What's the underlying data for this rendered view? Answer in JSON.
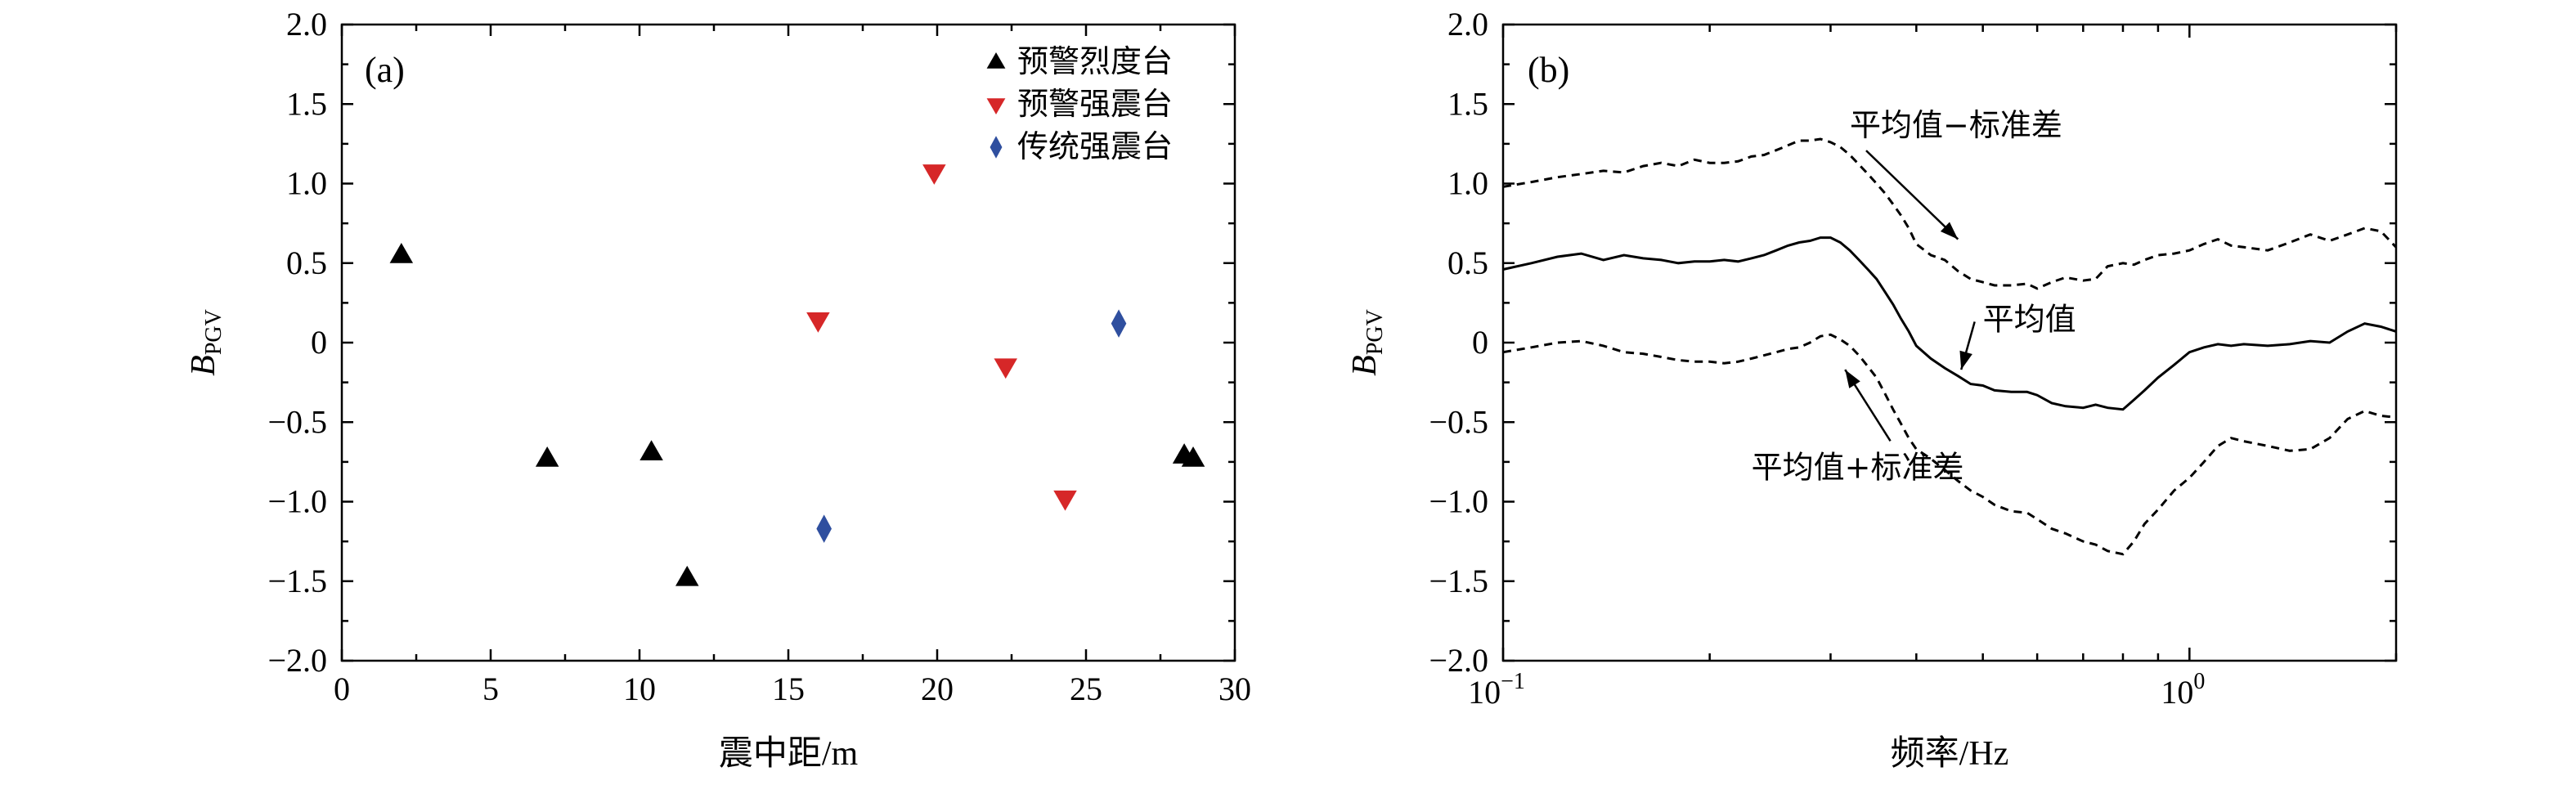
{
  "chart_data": [
    {
      "type": "scatter",
      "panel_label": "(a)",
      "xlabel": "震中距/m",
      "ylabel_main": "B",
      "ylabel_sub": "PGV",
      "xlim": [
        0,
        30
      ],
      "ylim": [
        -2.0,
        2.0
      ],
      "x_ticks": [
        0,
        5,
        10,
        15,
        20,
        25,
        30
      ],
      "x_tick_labels": [
        "0",
        "5",
        "10",
        "15",
        "20",
        "25",
        "30"
      ],
      "y_ticks": [
        -2.0,
        -1.5,
        -1.0,
        -0.5,
        0,
        0.5,
        1.0,
        1.5,
        2.0
      ],
      "y_tick_labels": [
        "−2.0",
        "−1.5",
        "−1.0",
        "−0.5",
        "0",
        "0.5",
        "1.0",
        "1.5",
        "2.0"
      ],
      "legend_position": "top-right",
      "series": [
        {
          "name": "预警烈度台",
          "marker": "triangle-up",
          "color": "#000000",
          "x": [
            2.0,
            6.9,
            10.4,
            11.6,
            28.3,
            28.6
          ],
          "y": [
            0.55,
            -0.73,
            -0.69,
            -1.48,
            -0.71,
            -0.73
          ]
        },
        {
          "name": "预警强震台",
          "marker": "triangle-down",
          "color": "#d62728",
          "x": [
            16.0,
            19.9,
            22.3,
            24.3
          ],
          "y": [
            0.14,
            1.07,
            -0.15,
            -0.98
          ]
        },
        {
          "name": "传统强震台",
          "marker": "diamond",
          "color": "#2f4f9f",
          "x": [
            16.2,
            26.1
          ],
          "y": [
            -1.17,
            0.12
          ]
        }
      ]
    },
    {
      "type": "line",
      "panel_label": "(b)",
      "xlabel": "频率/Hz",
      "ylabel_main": "B",
      "ylabel_sub": "PGV",
      "x_scale": "log",
      "xlim": [
        0.1,
        2.0
      ],
      "ylim": [
        -2.0,
        2.0
      ],
      "x_major_ticks": [
        0.1,
        1.0
      ],
      "x_major_tick_labels": [
        {
          "base": "10",
          "exp": "−1"
        },
        {
          "base": "10",
          "exp": "0"
        }
      ],
      "x_minor_ticks": [
        0.2,
        0.3,
        0.4,
        0.5,
        0.6,
        0.7,
        0.8,
        0.9,
        2.0
      ],
      "y_ticks": [
        -2.0,
        -1.5,
        -1.0,
        -0.5,
        0,
        0.5,
        1.0,
        1.5,
        2.0
      ],
      "y_tick_labels": [
        "−2.0",
        "−1.5",
        "−1.0",
        "−0.5",
        "0",
        "0.5",
        "1.0",
        "1.5",
        "2.0"
      ],
      "series": [
        {
          "name": "平均值",
          "style": "solid",
          "x": [
            0.1,
            0.11,
            0.12,
            0.13,
            0.14,
            0.15,
            0.16,
            0.17,
            0.18,
            0.19,
            0.2,
            0.21,
            0.22,
            0.23,
            0.24,
            0.25,
            0.26,
            0.27,
            0.28,
            0.29,
            0.3,
            0.31,
            0.32,
            0.33,
            0.34,
            0.35,
            0.36,
            0.37,
            0.38,
            0.39,
            0.4,
            0.42,
            0.44,
            0.46,
            0.48,
            0.5,
            0.52,
            0.55,
            0.58,
            0.6,
            0.63,
            0.66,
            0.7,
            0.73,
            0.76,
            0.8,
            0.83,
            0.86,
            0.9,
            0.95,
            1.0,
            1.05,
            1.1,
            1.15,
            1.2,
            1.3,
            1.4,
            1.5,
            1.6,
            1.7,
            1.8,
            1.9,
            2.0
          ],
          "y": [
            0.46,
            0.5,
            0.54,
            0.56,
            0.52,
            0.55,
            0.53,
            0.52,
            0.5,
            0.51,
            0.51,
            0.52,
            0.51,
            0.53,
            0.55,
            0.58,
            0.61,
            0.63,
            0.64,
            0.66,
            0.66,
            0.63,
            0.58,
            0.52,
            0.46,
            0.4,
            0.32,
            0.24,
            0.15,
            0.07,
            -0.02,
            -0.1,
            -0.16,
            -0.21,
            -0.26,
            -0.27,
            -0.3,
            -0.31,
            -0.31,
            -0.33,
            -0.38,
            -0.4,
            -0.41,
            -0.39,
            -0.41,
            -0.42,
            -0.36,
            -0.3,
            -0.22,
            -0.14,
            -0.06,
            -0.03,
            -0.01,
            -0.02,
            -0.01,
            -0.02,
            -0.01,
            0.01,
            0.0,
            0.07,
            0.12,
            0.1,
            0.07
          ]
        },
        {
          "name": "平均值−标准差",
          "style": "dashed",
          "x": [
            0.1,
            0.11,
            0.12,
            0.13,
            0.14,
            0.15,
            0.16,
            0.17,
            0.18,
            0.19,
            0.2,
            0.21,
            0.22,
            0.23,
            0.24,
            0.25,
            0.26,
            0.27,
            0.28,
            0.29,
            0.3,
            0.31,
            0.32,
            0.33,
            0.34,
            0.35,
            0.36,
            0.37,
            0.38,
            0.39,
            0.4,
            0.42,
            0.44,
            0.46,
            0.48,
            0.5,
            0.52,
            0.55,
            0.58,
            0.6,
            0.63,
            0.66,
            0.7,
            0.73,
            0.76,
            0.8,
            0.83,
            0.86,
            0.9,
            0.95,
            1.0,
            1.05,
            1.1,
            1.15,
            1.2,
            1.3,
            1.4,
            1.5,
            1.6,
            1.7,
            1.8,
            1.9,
            2.0
          ],
          "y": [
            0.98,
            1.01,
            1.04,
            1.06,
            1.08,
            1.07,
            1.11,
            1.13,
            1.11,
            1.15,
            1.13,
            1.13,
            1.14,
            1.17,
            1.18,
            1.21,
            1.24,
            1.27,
            1.27,
            1.28,
            1.26,
            1.23,
            1.18,
            1.12,
            1.06,
            1.0,
            0.94,
            0.87,
            0.8,
            0.72,
            0.62,
            0.55,
            0.52,
            0.45,
            0.4,
            0.38,
            0.36,
            0.36,
            0.37,
            0.34,
            0.38,
            0.41,
            0.39,
            0.4,
            0.48,
            0.5,
            0.49,
            0.52,
            0.55,
            0.56,
            0.58,
            0.62,
            0.65,
            0.61,
            0.6,
            0.58,
            0.63,
            0.68,
            0.64,
            0.68,
            0.72,
            0.7,
            0.6
          ]
        },
        {
          "name": "平均值+标准差",
          "style": "dashed",
          "x": [
            0.1,
            0.11,
            0.12,
            0.13,
            0.14,
            0.15,
            0.16,
            0.17,
            0.18,
            0.19,
            0.2,
            0.21,
            0.22,
            0.23,
            0.24,
            0.25,
            0.26,
            0.27,
            0.28,
            0.29,
            0.3,
            0.31,
            0.32,
            0.33,
            0.34,
            0.35,
            0.36,
            0.37,
            0.38,
            0.39,
            0.4,
            0.42,
            0.44,
            0.46,
            0.48,
            0.5,
            0.52,
            0.55,
            0.58,
            0.6,
            0.63,
            0.66,
            0.7,
            0.73,
            0.76,
            0.8,
            0.83,
            0.86,
            0.9,
            0.95,
            1.0,
            1.05,
            1.1,
            1.15,
            1.2,
            1.3,
            1.4,
            1.5,
            1.6,
            1.7,
            1.8,
            1.9,
            2.0
          ],
          "y": [
            -0.06,
            -0.03,
            0.0,
            0.01,
            -0.02,
            -0.06,
            -0.07,
            -0.09,
            -0.11,
            -0.12,
            -0.12,
            -0.13,
            -0.12,
            -0.1,
            -0.08,
            -0.06,
            -0.04,
            -0.03,
            0.0,
            0.04,
            0.05,
            0.02,
            -0.02,
            -0.08,
            -0.15,
            -0.22,
            -0.32,
            -0.42,
            -0.51,
            -0.6,
            -0.67,
            -0.73,
            -0.8,
            -0.87,
            -0.93,
            -0.97,
            -1.02,
            -1.06,
            -1.07,
            -1.11,
            -1.17,
            -1.2,
            -1.25,
            -1.27,
            -1.31,
            -1.33,
            -1.25,
            -1.14,
            -1.05,
            -0.93,
            -0.85,
            -0.75,
            -0.65,
            -0.6,
            -0.62,
            -0.65,
            -0.68,
            -0.67,
            -0.6,
            -0.48,
            -0.43,
            -0.46,
            -0.47
          ]
        }
      ],
      "annotations": [
        {
          "text": "平均值−标准差",
          "text_x": 0.32,
          "text_y": 1.3,
          "arrow_to_x": 0.46,
          "arrow_to_y": 0.65
        },
        {
          "text": "平均值",
          "text_x": 0.5,
          "text_y": 0.08,
          "arrow_to_x": 0.465,
          "arrow_to_y": -0.17
        },
        {
          "text": "平均值+标准差",
          "text_x": 0.23,
          "text_y": -0.85,
          "arrow_to_x": 0.315,
          "arrow_to_y": -0.17
        }
      ]
    }
  ]
}
